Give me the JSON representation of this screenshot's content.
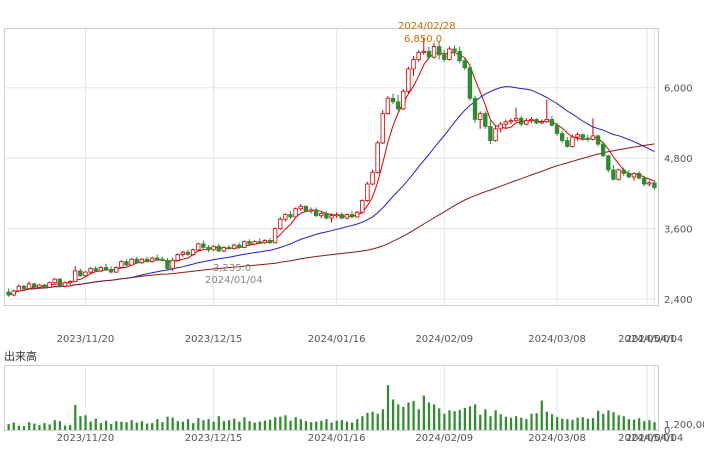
{
  "chart_data": [
    {
      "type": "candlestick",
      "title": "",
      "ylim": [
        2300,
        7000
      ],
      "y_ticks": [
        "2,400",
        "3,600",
        "4,800",
        "6,000"
      ],
      "x_ticks": [
        "2023/11/20",
        "2023/12/15",
        "2024/01/16",
        "2024/02/09",
        "2024/03/08",
        "2024/04/04",
        "2024/05/01"
      ],
      "high_annotation": {
        "date": "2024/02/28",
        "value": "6,850.0"
      },
      "low_annotation": {
        "date": "2024/01/04",
        "value": "3,235.0"
      },
      "colors": {
        "up": "#ffffff",
        "up_border": "#d40000",
        "down": "#2e8b2e",
        "ma_short": "#d40000",
        "ma_mid": "#1f1fd4",
        "ma_long": "#8b1a1a"
      },
      "candles": [
        [
          2520,
          2580,
          2440,
          2470
        ],
        [
          2470,
          2560,
          2450,
          2540
        ],
        [
          2540,
          2650,
          2520,
          2620
        ],
        [
          2620,
          2640,
          2560,
          2580
        ],
        [
          2580,
          2700,
          2570,
          2660
        ],
        [
          2660,
          2680,
          2590,
          2600
        ],
        [
          2600,
          2660,
          2580,
          2640
        ],
        [
          2640,
          2660,
          2580,
          2600
        ],
        [
          2600,
          2700,
          2590,
          2680
        ],
        [
          2680,
          2760,
          2660,
          2740
        ],
        [
          2740,
          2760,
          2600,
          2620
        ],
        [
          2620,
          2700,
          2600,
          2680
        ],
        [
          2680,
          2720,
          2640,
          2700
        ],
        [
          2700,
          2960,
          2690,
          2880
        ],
        [
          2880,
          2920,
          2780,
          2800
        ],
        [
          2800,
          2880,
          2780,
          2860
        ],
        [
          2860,
          2940,
          2840,
          2920
        ],
        [
          2920,
          2960,
          2860,
          2880
        ],
        [
          2880,
          2960,
          2860,
          2940
        ],
        [
          2940,
          3000,
          2880,
          2900
        ],
        [
          2900,
          2960,
          2840,
          2860
        ],
        [
          2860,
          2960,
          2850,
          2940
        ],
        [
          2940,
          3060,
          2920,
          3040
        ],
        [
          3040,
          3080,
          2960,
          2980
        ],
        [
          2980,
          3100,
          2970,
          3080
        ],
        [
          3080,
          3120,
          3000,
          3020
        ],
        [
          3020,
          3100,
          3000,
          3080
        ],
        [
          3080,
          3120,
          3020,
          3040
        ],
        [
          3040,
          3120,
          3020,
          3100
        ],
        [
          3100,
          3160,
          3060,
          3080
        ],
        [
          3080,
          3120,
          3040,
          3060
        ],
        [
          3060,
          3100,
          2900,
          2920
        ],
        [
          2920,
          3100,
          2880,
          3060
        ],
        [
          3060,
          3180,
          3040,
          3160
        ],
        [
          3160,
          3220,
          3120,
          3200
        ],
        [
          3200,
          3240,
          3140,
          3160
        ],
        [
          3160,
          3260,
          3140,
          3240
        ],
        [
          3240,
          3360,
          3220,
          3340
        ],
        [
          3340,
          3400,
          3260,
          3280
        ],
        [
          3280,
          3320,
          3200,
          3240
        ],
        [
          3240,
          3320,
          3220,
          3300
        ],
        [
          3300,
          3340,
          3200,
          3220
        ],
        [
          3220,
          3300,
          3200,
          3280
        ],
        [
          3280,
          3320,
          3235,
          3260
        ],
        [
          3260,
          3340,
          3240,
          3320
        ],
        [
          3320,
          3360,
          3260,
          3280
        ],
        [
          3280,
          3400,
          3270,
          3380
        ],
        [
          3380,
          3420,
          3320,
          3340
        ],
        [
          3340,
          3400,
          3320,
          3380
        ],
        [
          3380,
          3440,
          3340,
          3360
        ],
        [
          3360,
          3420,
          3340,
          3400
        ],
        [
          3400,
          3440,
          3340,
          3360
        ],
        [
          3360,
          3620,
          3350,
          3600
        ],
        [
          3600,
          3800,
          3580,
          3760
        ],
        [
          3760,
          3860,
          3720,
          3840
        ],
        [
          3840,
          3900,
          3760,
          3800
        ],
        [
          3800,
          3960,
          3780,
          3940
        ],
        [
          3940,
          4020,
          3900,
          3980
        ],
        [
          3980,
          4000,
          3880,
          3900
        ],
        [
          3900,
          3960,
          3860,
          3920
        ],
        [
          3920,
          3960,
          3800,
          3820
        ],
        [
          3820,
          3880,
          3780,
          3860
        ],
        [
          3860,
          3900,
          3760,
          3780
        ],
        [
          3780,
          3860,
          3700,
          3820
        ],
        [
          3820,
          3880,
          3780,
          3840
        ],
        [
          3840,
          3880,
          3760,
          3780
        ],
        [
          3780,
          3860,
          3760,
          3840
        ],
        [
          3840,
          3900,
          3780,
          3800
        ],
        [
          3800,
          3900,
          3790,
          3880
        ],
        [
          3880,
          4100,
          3860,
          4080
        ],
        [
          4080,
          4400,
          4060,
          4360
        ],
        [
          4360,
          4600,
          4340,
          4560
        ],
        [
          4560,
          5100,
          4540,
          5060
        ],
        [
          5060,
          5620,
          5040,
          5560
        ],
        [
          5560,
          5860,
          5540,
          5820
        ],
        [
          5820,
          5900,
          5720,
          5760
        ],
        [
          5760,
          5880,
          5600,
          5640
        ],
        [
          5640,
          5980,
          5620,
          5940
        ],
        [
          5940,
          6360,
          5900,
          6320
        ],
        [
          6320,
          6540,
          6200,
          6480
        ],
        [
          6480,
          6640,
          6440,
          6600
        ],
        [
          6600,
          6850,
          6560,
          6620
        ],
        [
          6620,
          6700,
          6480,
          6520
        ],
        [
          6520,
          6760,
          6500,
          6700
        ],
        [
          6700,
          6800,
          6480,
          6560
        ],
        [
          6560,
          6640,
          6440,
          6480
        ],
        [
          6480,
          6700,
          6460,
          6660
        ],
        [
          6660,
          6720,
          6540,
          6620
        ],
        [
          6620,
          6700,
          6420,
          6460
        ],
        [
          6460,
          6520,
          6300,
          6340
        ],
        [
          6340,
          6400,
          5780,
          5820
        ],
        [
          5820,
          5860,
          5400,
          5460
        ],
        [
          5460,
          5600,
          5300,
          5560
        ],
        [
          5560,
          5600,
          5300,
          5340
        ],
        [
          5340,
          5460,
          5040,
          5100
        ],
        [
          5100,
          5360,
          5080,
          5300
        ],
        [
          5300,
          5420,
          5240,
          5380
        ],
        [
          5380,
          5460,
          5300,
          5420
        ],
        [
          5420,
          5480,
          5380,
          5440
        ],
        [
          5440,
          5660,
          5420,
          5480
        ],
        [
          5480,
          5520,
          5340,
          5380
        ],
        [
          5380,
          5480,
          5360,
          5440
        ],
        [
          5440,
          5500,
          5400,
          5460
        ],
        [
          5460,
          5480,
          5380,
          5400
        ],
        [
          5400,
          5460,
          5380,
          5420
        ],
        [
          5420,
          5800,
          5400,
          5460
        ],
        [
          5460,
          5520,
          5340,
          5360
        ],
        [
          5360,
          5400,
          5180,
          5220
        ],
        [
          5220,
          5260,
          5060,
          5100
        ],
        [
          5100,
          5160,
          4980,
          5000
        ],
        [
          5000,
          5200,
          4980,
          5160
        ],
        [
          5160,
          5240,
          5100,
          5200
        ],
        [
          5200,
          5220,
          5100,
          5140
        ],
        [
          5140,
          5200,
          5080,
          5120
        ],
        [
          5120,
          5480,
          5100,
          5180
        ],
        [
          5180,
          5200,
          5000,
          5040
        ],
        [
          5040,
          5080,
          4820,
          4840
        ],
        [
          4840,
          4860,
          4560,
          4600
        ],
        [
          4600,
          4680,
          4420,
          4440
        ],
        [
          4440,
          4620,
          4420,
          4600
        ],
        [
          4600,
          4640,
          4500,
          4540
        ],
        [
          4540,
          4600,
          4460,
          4480
        ],
        [
          4480,
          4560,
          4420,
          4540
        ],
        [
          4540,
          4580,
          4440,
          4460
        ],
        [
          4460,
          4500,
          4320,
          4360
        ],
        [
          4360,
          4420,
          4320,
          4380
        ],
        [
          4380,
          4420,
          4260,
          4300
        ]
      ],
      "volumes": [
        120,
        150,
        90,
        80,
        160,
        130,
        100,
        140,
        110,
        200,
        180,
        90,
        100,
        510,
        280,
        300,
        170,
        230,
        140,
        190,
        120,
        180,
        170,
        160,
        200,
        150,
        180,
        130,
        140,
        220,
        160,
        270,
        250,
        180,
        170,
        220,
        140,
        240,
        200,
        220,
        170,
        280,
        180,
        200,
        230,
        170,
        260,
        180,
        150,
        170,
        190,
        210,
        260,
        270,
        300,
        190,
        260,
        220,
        180,
        160,
        170,
        190,
        220,
        150,
        190,
        200,
        170,
        150,
        220,
        280,
        350,
        370,
        330,
        420,
        910,
        620,
        520,
        470,
        560,
        590,
        420,
        700,
        560,
        520,
        440,
        330,
        400,
        380,
        410,
        450,
        480,
        520,
        310,
        420,
        280,
        400,
        320,
        270,
        250,
        280,
        250,
        220,
        330,
        340,
        600,
        370,
        320,
        260,
        230,
        220,
        210,
        250,
        260,
        230,
        240,
        390,
        330,
        400,
        360,
        300,
        280,
        220,
        210,
        240,
        180,
        200,
        160
      ],
      "ma_short": [],
      "ma_mid": [],
      "ma_long": [],
      "ylabel": ""
    },
    {
      "type": "bar",
      "title": "出来高",
      "ylim": [
        0,
        1300000
      ],
      "y_ticks": [
        "0",
        "1,200,00"
      ],
      "x_ticks": [
        "2023/11/20",
        "2023/12/15",
        "2024/01/16",
        "2024/02/09",
        "2024/03/08",
        "2024/04/04",
        "2024/05/01"
      ]
    }
  ]
}
